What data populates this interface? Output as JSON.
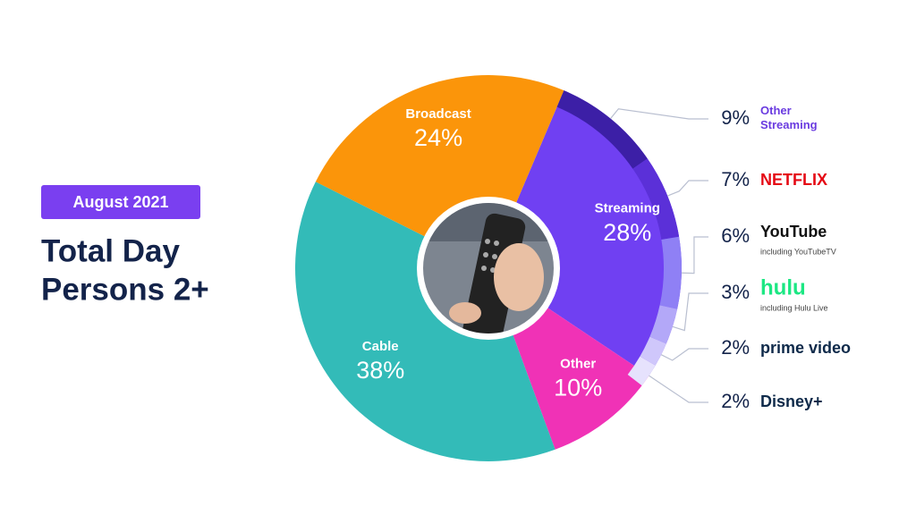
{
  "chart_data": [
    {
      "type": "pie",
      "subtitle": "August 2021",
      "title_lines": [
        "Total Day",
        "Persons 2+"
      ],
      "categories": [
        "Streaming",
        "Other",
        "Cable",
        "Broadcast"
      ],
      "values": [
        28,
        10,
        38,
        24
      ],
      "value_labels": [
        "28%",
        "10%",
        "38%",
        "24%"
      ],
      "colors": [
        "#7040f2",
        "#f032b6",
        "#33bbb8",
        "#fb950a"
      ]
    },
    {
      "type": "ring",
      "categories": [
        "Other Streaming",
        "NETFLIX",
        "YouTube",
        "hulu",
        "prime video",
        "Disney+"
      ],
      "notes": [
        null,
        null,
        "including YouTubeTV",
        "including Hulu Live",
        null,
        null
      ],
      "values": [
        9,
        7,
        6,
        3,
        2,
        2
      ],
      "value_labels": [
        "9%",
        "7%",
        "6%",
        "3%",
        "2%",
        "2%"
      ],
      "colors": [
        "#3c1fa6",
        "#5b30d8",
        "#8f80f5",
        "#b3a8f8",
        "#cfc7fb",
        "#e6e2fd"
      ],
      "label_colors": [
        "#6a3be0",
        "#e50914",
        "#111111",
        "#1ce783",
        "#0f2a4a",
        "#0f2a4a"
      ]
    }
  ]
}
